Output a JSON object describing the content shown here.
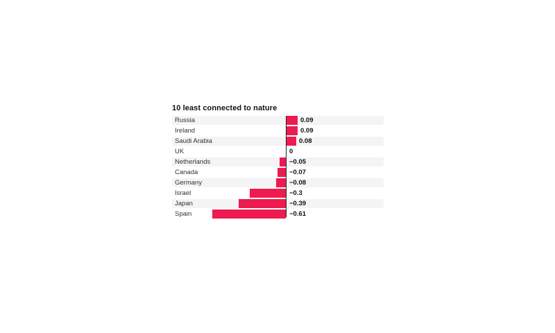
{
  "page": {
    "background_color": "#ffffff"
  },
  "chart_data": {
    "type": "bar",
    "orientation": "horizontal",
    "title": "10 least connected to nature",
    "categories": [
      "Russia",
      "Ireland",
      "Saudi Arabia",
      "UK",
      "Netherlands",
      "Canada",
      "Germany",
      "Israel",
      "Japan",
      "Spain"
    ],
    "values": [
      0.09,
      0.09,
      0.08,
      0,
      -0.05,
      -0.07,
      -0.08,
      -0.3,
      -0.39,
      -0.61
    ],
    "value_labels": [
      "0.09",
      "0.09",
      "0.08",
      "0",
      "−0.05",
      "−0.07",
      "−0.08",
      "−0.3",
      "−0.39",
      "−0.61"
    ],
    "xlabel": "",
    "ylabel": "",
    "xlim": [
      -0.94,
      0.8
    ],
    "grid": false,
    "legend": "none",
    "zero_axis_line": true,
    "row_striping": "alternate (1st, 3rd, 5th... rows shaded)",
    "colors": {
      "bar": "#ed1b4f",
      "row_stripe": "#f4f4f6",
      "zero_line": "#222222",
      "title_text": "#111111",
      "category_text": "#333333",
      "value_text": "#111111"
    }
  }
}
